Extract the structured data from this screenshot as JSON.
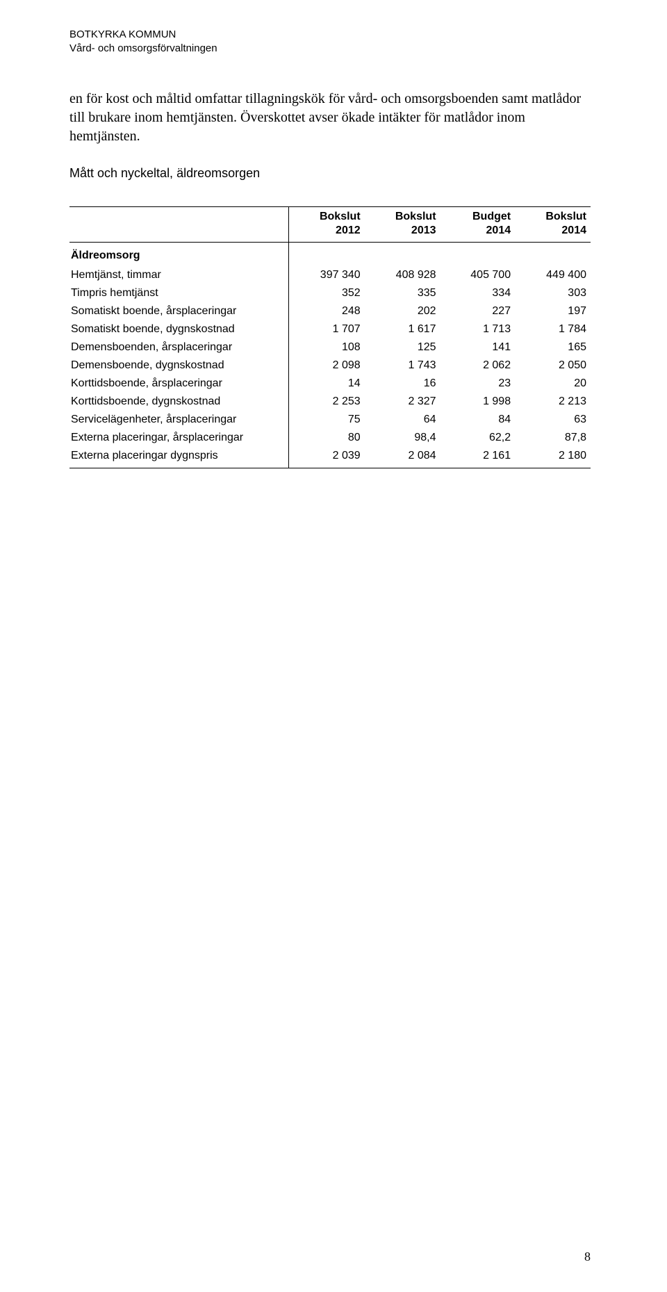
{
  "header": {
    "org": "BOTKYRKA KOMMUN",
    "dept": "Vård- och omsorgsförvaltningen"
  },
  "para": "en för kost och måltid omfattar tillagningskök för vård- och omsorgsboenden samt matlådor till brukare inom hemtjänsten. Överskottet avser ökade intäkter för matlådor inom hemtjänsten.",
  "section_title": "Mått och nyckeltal, äldreomsorgen",
  "table": {
    "columns": [
      {
        "l1": "Bokslut",
        "l2": "2012"
      },
      {
        "l1": "Bokslut",
        "l2": "2013"
      },
      {
        "l1": "Budget",
        "l2": "2014"
      },
      {
        "l1": "Bokslut",
        "l2": "2014"
      }
    ],
    "category": "Äldreomsorg",
    "rows": [
      {
        "label": "Hemtjänst, timmar",
        "v": [
          "397 340",
          "408 928",
          "405 700",
          "449 400"
        ]
      },
      {
        "label": "Timpris hemtjänst",
        "v": [
          "352",
          "335",
          "334",
          "303"
        ]
      },
      {
        "label": "Somatiskt boende, årsplaceringar",
        "v": [
          "248",
          "202",
          "227",
          "197"
        ]
      },
      {
        "label": "Somatiskt boende, dygnskostnad",
        "v": [
          "1 707",
          "1 617",
          "1 713",
          "1 784"
        ]
      },
      {
        "label": "Demensboenden, årsplaceringar",
        "v": [
          "108",
          "125",
          "141",
          "165"
        ]
      },
      {
        "label": "Demensboende, dygnskostnad",
        "v": [
          "2 098",
          "1 743",
          "2 062",
          "2 050"
        ]
      },
      {
        "label": "Korttidsboende, årsplaceringar",
        "v": [
          "14",
          "16",
          "23",
          "20"
        ]
      },
      {
        "label": "Korttidsboende, dygnskostnad",
        "v": [
          "2 253",
          "2 327",
          "1 998",
          "2 213"
        ]
      },
      {
        "label": "Servicelägenheter, årsplaceringar",
        "v": [
          "75",
          "64",
          "84",
          "63"
        ]
      },
      {
        "label": "Externa placeringar, årsplaceringar",
        "v": [
          "80",
          "98,4",
          "62,2",
          "87,8"
        ]
      },
      {
        "label": "Externa placeringar dygnspris",
        "v": [
          "2 039",
          "2 084",
          "2 161",
          "2 180"
        ]
      }
    ]
  },
  "page_number": "8",
  "style": {
    "body_font": "Times New Roman",
    "header_font": "Arial",
    "border_color": "#000000",
    "background": "#ffffff",
    "text_color": "#000000"
  }
}
